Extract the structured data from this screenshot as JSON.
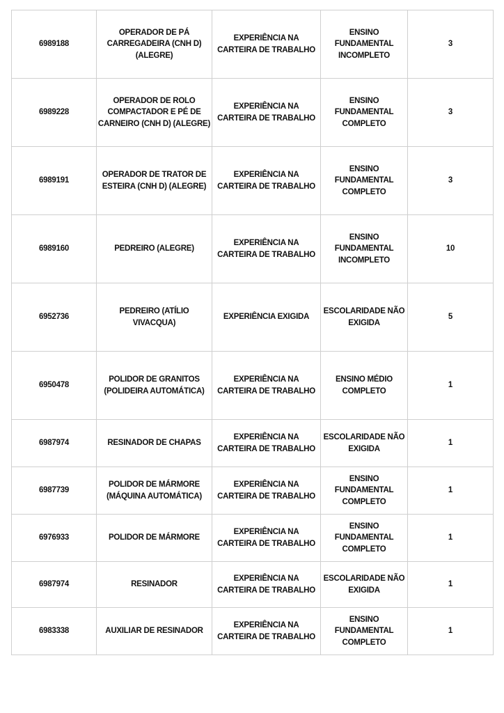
{
  "table": {
    "rows": [
      {
        "code": "6989188",
        "role": "OPERADOR DE PÁ CARREGADEIRA (CNH D) (ALEGRE)",
        "experience": "EXPERIÊNCIA NA CARTEIRA DE TRABALHO",
        "education": "ENSINO FUNDAMENTAL INCOMPLETO",
        "vacancies": "3"
      },
      {
        "code": "6989228",
        "role": "OPERADOR DE ROLO COMPACTADOR E PÉ DE CARNEIRO (CNH D) (ALEGRE)",
        "experience": "EXPERIÊNCIA NA CARTEIRA DE TRABALHO",
        "education": "ENSINO FUNDAMENTAL COMPLETO",
        "vacancies": "3"
      },
      {
        "code": "6989191",
        "role": "OPERADOR DE TRATOR DE ESTEIRA (CNH D) (ALEGRE)",
        "experience": "EXPERIÊNCIA NA CARTEIRA DE TRABALHO",
        "education": "ENSINO FUNDAMENTAL COMPLETO",
        "vacancies": "3"
      },
      {
        "code": "6989160",
        "role": "PEDREIRO (ALEGRE)",
        "experience": "EXPERIÊNCIA NA CARTEIRA DE TRABALHO",
        "education": "ENSINO FUNDAMENTAL INCOMPLETO",
        "vacancies": "10"
      },
      {
        "code": "6952736",
        "role": "PEDREIRO (ATÍLIO VIVACQUA)",
        "experience": "EXPERIÊNCIA EXIGIDA",
        "education": "ESCOLARIDADE NÃO EXIGIDA",
        "vacancies": "5"
      },
      {
        "code": "6950478",
        "role": "POLIDOR DE GRANITOS (POLIDEIRA AUTOMÁTICA)",
        "experience": "EXPERIÊNCIA NA CARTEIRA DE TRABALHO",
        "education": "ENSINO MÉDIO COMPLETO",
        "vacancies": "1"
      },
      {
        "code": "6987974",
        "role": "RESINADOR DE CHAPAS",
        "experience": "EXPERIÊNCIA NA CARTEIRA DE TRABALHO",
        "education": "ESCOLARIDADE NÃO EXIGIDA",
        "vacancies": "1"
      },
      {
        "code": "6987739",
        "role": "POLIDOR DE MÁRMORE (MÁQUINA AUTOMÁTICA)",
        "experience": "EXPERIÊNCIA NA CARTEIRA DE TRABALHO",
        "education": "ENSINO FUNDAMENTAL COMPLETO",
        "vacancies": "1"
      },
      {
        "code": "6976933",
        "role": "POLIDOR DE MÁRMORE",
        "experience": "EXPERIÊNCIA NA CARTEIRA DE TRABALHO",
        "education": "ENSINO FUNDAMENTAL COMPLETO",
        "vacancies": "1"
      },
      {
        "code": "6987974",
        "role": "RESINADOR",
        "experience": "EXPERIÊNCIA NA CARTEIRA DE TRABALHO",
        "education": "ESCOLARIDADE NÃO EXIGIDA",
        "vacancies": "1"
      },
      {
        "code": "6983338",
        "role": "AUXILIAR DE RESINADOR",
        "experience": "EXPERIÊNCIA NA CARTEIRA DE TRABALHO",
        "education": "ENSINO FUNDAMENTAL COMPLETO",
        "vacancies": "1"
      }
    ]
  }
}
